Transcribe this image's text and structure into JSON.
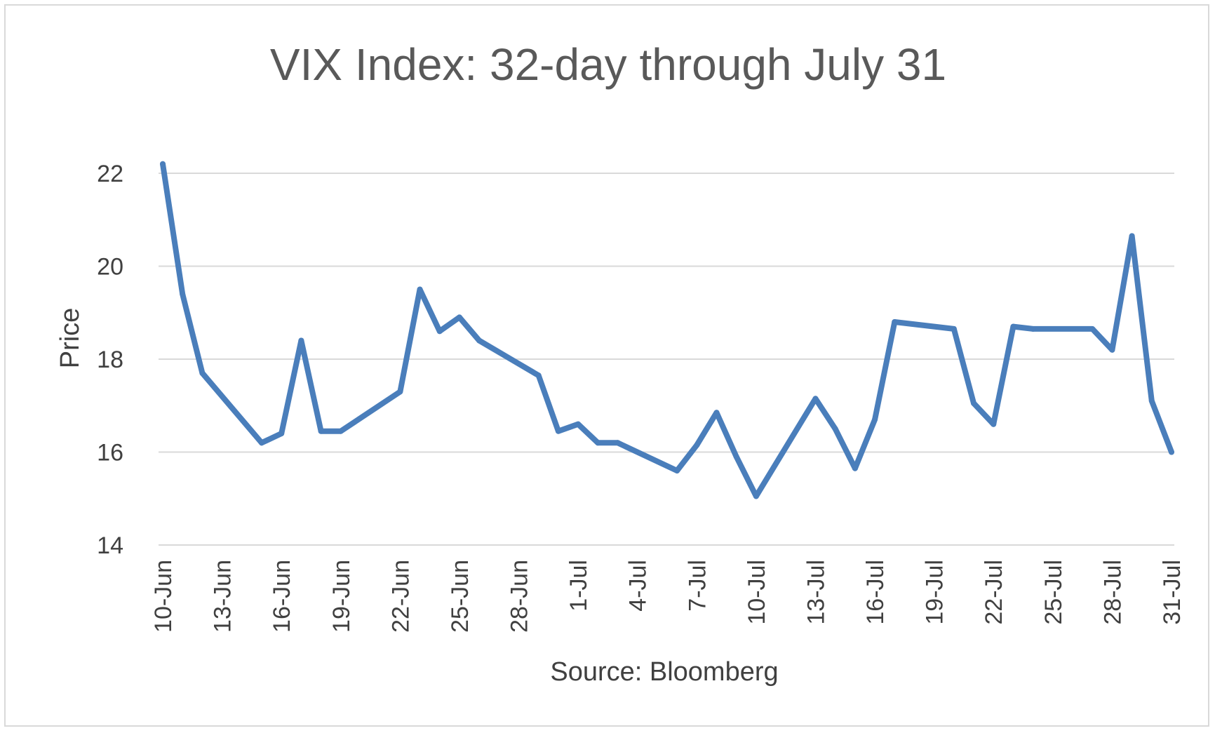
{
  "chart_data": {
    "type": "line",
    "title": "VIX Index: 32-day through July 31",
    "xlabel": "Source: Bloomberg",
    "ylabel": "Price",
    "ylim": [
      14,
      22
    ],
    "yticks": [
      14,
      16,
      18,
      20,
      22
    ],
    "grid": true,
    "line_color": "#4a7ebb",
    "xtick_labels": [
      "10-Jun",
      "13-Jun",
      "16-Jun",
      "19-Jun",
      "22-Jun",
      "25-Jun",
      "28-Jun",
      "1-Jul",
      "4-Jul",
      "7-Jul",
      "10-Jul",
      "13-Jul",
      "16-Jul",
      "19-Jul",
      "22-Jul",
      "25-Jul",
      "28-Jul",
      "31-Jul"
    ],
    "series": [
      {
        "x": [
          "10-Jun",
          "11-Jun",
          "12-Jun",
          "15-Jun",
          "16-Jun",
          "17-Jun",
          "18-Jun",
          "19-Jun",
          "22-Jun",
          "23-Jun",
          "24-Jun",
          "25-Jun",
          "26-Jun",
          "29-Jun",
          "30-Jun",
          "1-Jul",
          "2-Jul",
          "3-Jul",
          "6-Jul",
          "7-Jul",
          "8-Jul",
          "9-Jul",
          "10-Jul",
          "13-Jul",
          "14-Jul",
          "15-Jul",
          "16-Jul",
          "17-Jul",
          "20-Jul",
          "21-Jul",
          "22-Jul",
          "23-Jul",
          "24-Jul",
          "27-Jul",
          "28-Jul",
          "29-Jul",
          "30-Jul",
          "31-Jul"
        ],
        "values": [
          22.2,
          19.4,
          17.7,
          16.2,
          16.4,
          18.4,
          16.45,
          16.45,
          17.3,
          19.5,
          18.6,
          18.9,
          18.4,
          17.65,
          16.45,
          16.6,
          16.2,
          16.2,
          15.6,
          16.15,
          16.85,
          15.9,
          15.05,
          17.15,
          16.5,
          15.65,
          16.7,
          18.8,
          18.65,
          17.05,
          16.6,
          18.7,
          18.65,
          18.65,
          18.2,
          20.65,
          17.1,
          16.0
        ]
      }
    ]
  }
}
